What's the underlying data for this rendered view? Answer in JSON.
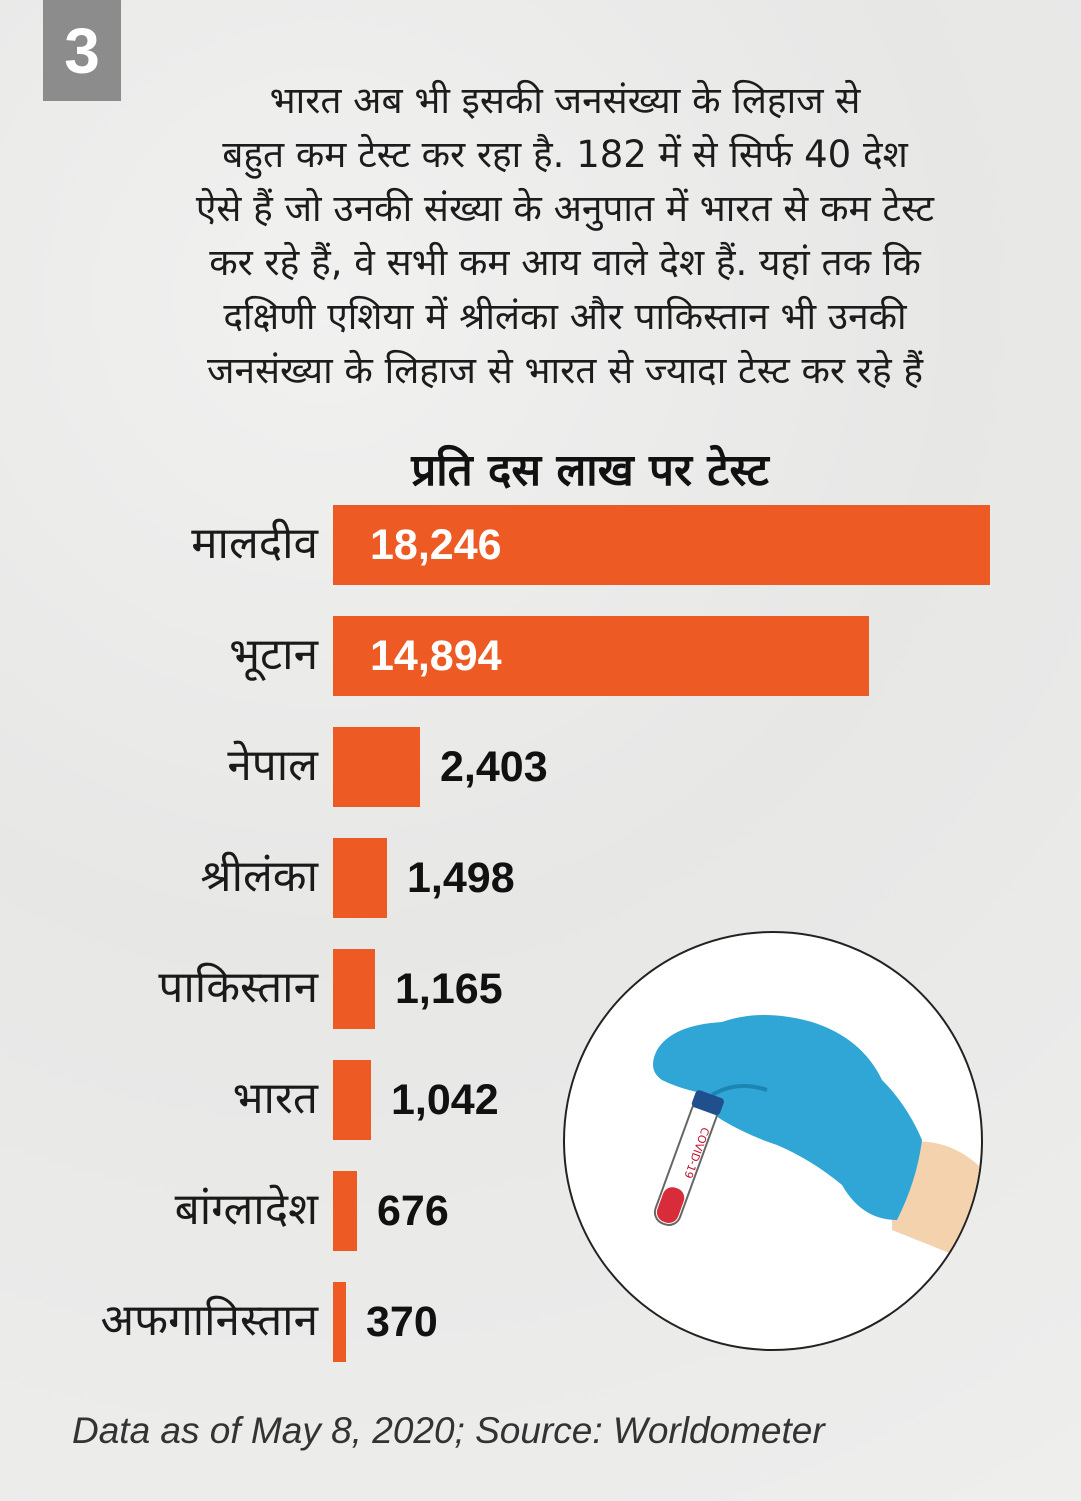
{
  "badge": "3",
  "intro_lines": [
    "भारत अब भी इसकी जनसंख्या के लिहाज से",
    "बहुत कम टेस्ट कर रहा है. 182 में से सिर्फ 40 देश",
    "ऐसे हैं जो उनकी संख्या के अनुपात में भारत से कम टेस्ट",
    "कर रहे हैं, वे सभी कम आय वाले देश हैं. यहां तक कि",
    "दक्षिणी एशिया में श्रीलंका और पाकिस्तान भी उनकी",
    "जनसंख्या के लिहाज से भारत से ज्यादा टेस्ट कर रहे हैं"
  ],
  "chart_data": {
    "type": "bar",
    "orientation": "horizontal",
    "title": "प्रति दस लाख पर टेस्ट",
    "categories": [
      "मालदीव",
      "भूटान",
      "नेपाल",
      "श्रीलंका",
      "पाकिस्तान",
      "भारत",
      "बांग्लादेश",
      "अफगानिस्तान"
    ],
    "values": [
      18246,
      14894,
      2403,
      1498,
      1165,
      1042,
      676,
      370
    ],
    "value_labels": [
      "18,246",
      "14,894",
      "2,403",
      "1,498",
      "1,165",
      "1,042",
      "676",
      "370"
    ],
    "bar_color": "#ee5a24",
    "grid": false
  },
  "source": "Data as of May 8, 2020; Source: Worldometer",
  "illustration": {
    "icon": "gloved-hand-holding-covid-test-tube-icon",
    "tube_label": "COVID-19",
    "glove_color": "#2fa6d6"
  }
}
